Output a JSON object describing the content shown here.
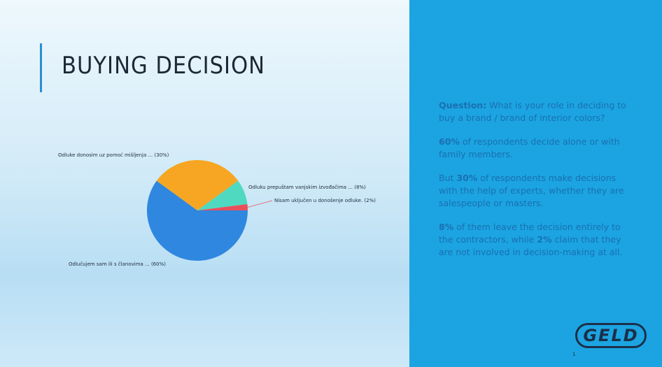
{
  "slide": {
    "title": "BUYING DECISION",
    "paragraphs": [
      [
        {
          "text": "Question:",
          "bold": true
        },
        {
          "text": " What is your role in deciding to buy a brand / brand of interior colors?",
          "bold": false
        }
      ],
      [
        {
          "text": "60%",
          "bold": true
        },
        {
          "text": " of respondents decide alone or with family members.",
          "bold": false
        }
      ],
      [
        {
          "text": "But ",
          "bold": false
        },
        {
          "text": "30%",
          "bold": true
        },
        {
          "text": " of respondents make decisions with the help of experts, whether they are salespeople or masters.",
          "bold": false
        }
      ],
      [
        {
          "text": "8%",
          "bold": true
        },
        {
          "text": " of them leave the decision entirely to the contractors, while ",
          "bold": false
        },
        {
          "text": "2%",
          "bold": true
        },
        {
          "text": " claim that they are not involved in decision-making at all.",
          "bold": false
        }
      ]
    ],
    "logo": "GELD",
    "page_number": "1"
  },
  "chart_data": {
    "type": "pie",
    "categories": [
      "Odlučujem sam ili s članovima ... (60%)",
      "Odluke donosim uz pomoć mišljenja ... (30%)",
      "Odluku prepuštam vanjskim izvođačima ... (8%)",
      "Nisam uključen u donošenje odluke. (2%)"
    ],
    "values": [
      60,
      30,
      8,
      2
    ],
    "colors": [
      "#2f87df",
      "#f6a623",
      "#4fd9c1",
      "#e8505b"
    ]
  }
}
